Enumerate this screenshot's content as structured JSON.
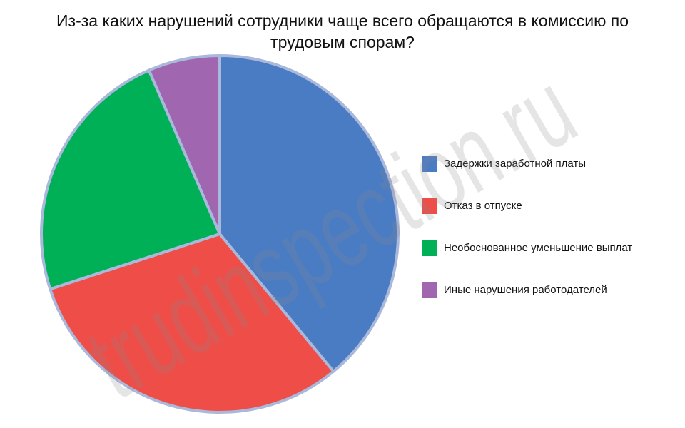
{
  "chart_data": {
    "type": "pie",
    "title": "Из-за каких нарушений сотрудники чаще всего обращаются в комиссию по трудовым спорам?",
    "watermark": "trudinspection.ru",
    "categories": [
      "Задержки заработной платы",
      "Отказ в отпуске",
      "Необоснованное уменьшение выплат",
      "Иные нарушения работодателей"
    ],
    "values": [
      39,
      31,
      23.5,
      6.5
    ],
    "colors": [
      "#4a7cc4",
      "#ef4e48",
      "#00b057",
      "#a066b0"
    ],
    "legend": "right"
  }
}
